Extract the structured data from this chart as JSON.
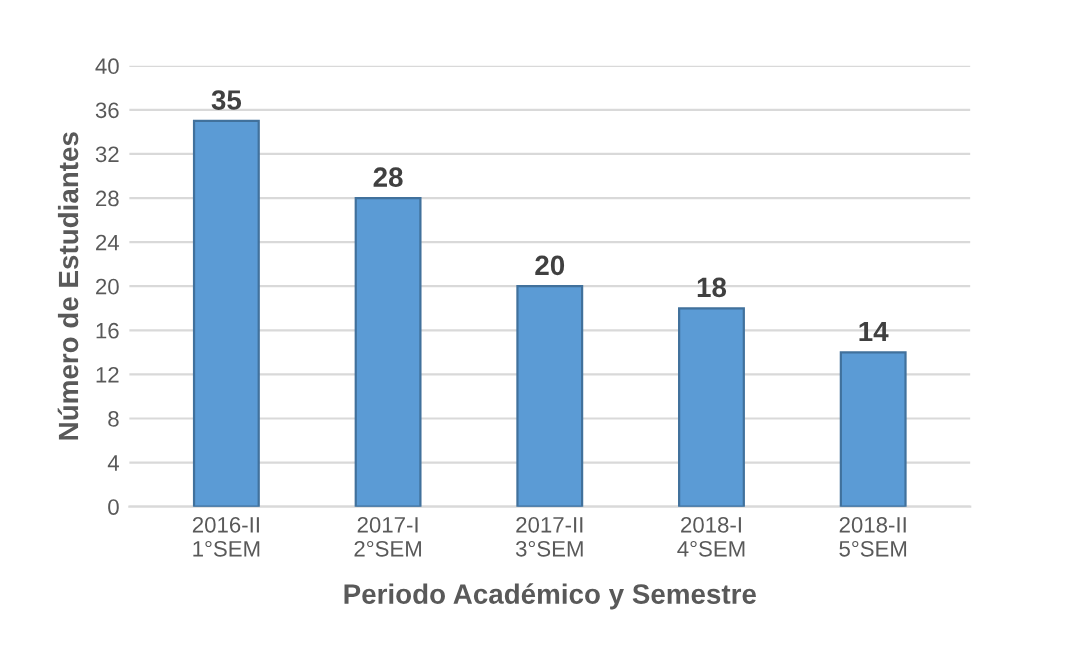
{
  "chart_data": {
    "type": "bar",
    "xlabel": "Periodo Académico y Semestre",
    "ylabel": "Número de Estudiantes",
    "categories": [
      "2016-II\n1°SEM",
      "2017-I\n2°SEM",
      "2017-II\n3°SEM",
      "2018-I\n4°SEM",
      "2018-II\n5°SEM"
    ],
    "values": [
      35,
      28,
      20,
      18,
      14
    ],
    "color": "#5b9bd5",
    "ylim": [
      0,
      40
    ],
    "yticks": [
      0,
      4,
      8,
      12,
      16,
      20,
      24,
      28,
      32,
      36,
      40
    ],
    "grid": "y",
    "data_labels": true
  }
}
